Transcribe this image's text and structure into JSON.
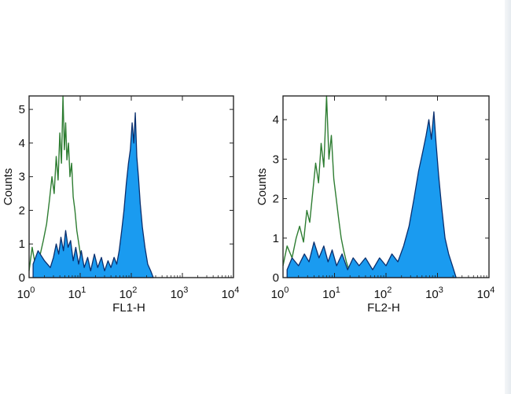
{
  "chart_data": [
    {
      "type": "area",
      "xlabel": "FL1-H",
      "ylabel": "Counts",
      "xscale": "log",
      "xlim": [
        1,
        10000
      ],
      "ylim": [
        0,
        5.4
      ],
      "xticks": [
        {
          "value": 1,
          "base": "10",
          "exp": "0"
        },
        {
          "value": 10,
          "base": "10",
          "exp": "1"
        },
        {
          "value": 100,
          "base": "10",
          "exp": "2"
        },
        {
          "value": 1000,
          "base": "10",
          "exp": "3"
        },
        {
          "value": 10000,
          "base": "10",
          "exp": "4"
        }
      ],
      "yticks": [
        0,
        1,
        2,
        3,
        4,
        5
      ],
      "grid": false,
      "series": [
        {
          "role": "sample",
          "color": "#1a9bf0",
          "outline": "#0a2f6e",
          "style": "filled",
          "points": [
            [
              1.2,
              0.4
            ],
            [
              1.5,
              0.8
            ],
            [
              2,
              0.5
            ],
            [
              2.6,
              0.3
            ],
            [
              3,
              0.6
            ],
            [
              3.4,
              1.0
            ],
            [
              3.8,
              0.7
            ],
            [
              4.2,
              1.2
            ],
            [
              4.7,
              0.8
            ],
            [
              5.2,
              1.4
            ],
            [
              5.8,
              0.9
            ],
            [
              6.5,
              1.1
            ],
            [
              7.3,
              0.5
            ],
            [
              8.2,
              0.9
            ],
            [
              9.3,
              0.4
            ],
            [
              10.5,
              0.8
            ],
            [
              12,
              0.3
            ],
            [
              14,
              0.6
            ],
            [
              16,
              0.2
            ],
            [
              19,
              0.7
            ],
            [
              22,
              0.3
            ],
            [
              26,
              0.6
            ],
            [
              30,
              0.2
            ],
            [
              35,
              0.5
            ],
            [
              40,
              0.3
            ],
            [
              46,
              0.6
            ],
            [
              52,
              0.4
            ],
            [
              58,
              0.8
            ],
            [
              65,
              1.4
            ],
            [
              72,
              2.0
            ],
            [
              80,
              2.8
            ],
            [
              88,
              3.4
            ],
            [
              96,
              3.8
            ],
            [
              104,
              4.6
            ],
            [
              112,
              4.0
            ],
            [
              120,
              4.9
            ],
            [
              128,
              3.6
            ],
            [
              138,
              3.0
            ],
            [
              150,
              2.2
            ],
            [
              165,
              1.5
            ],
            [
              185,
              0.9
            ],
            [
              210,
              0.4
            ],
            [
              240,
              0.2
            ],
            [
              270,
              0.0
            ]
          ]
        },
        {
          "role": "control",
          "color": "#2e7d32",
          "style": "line",
          "points": [
            [
              1,
              0.2
            ],
            [
              1.15,
              0.9
            ],
            [
              1.35,
              0.3
            ],
            [
              1.6,
              0.6
            ],
            [
              1.9,
              1.1
            ],
            [
              2.2,
              1.6
            ],
            [
              2.5,
              2.3
            ],
            [
              2.8,
              3.0
            ],
            [
              3.1,
              2.5
            ],
            [
              3.4,
              3.6
            ],
            [
              3.7,
              2.9
            ],
            [
              4.0,
              4.3
            ],
            [
              4.3,
              3.4
            ],
            [
              4.6,
              5.4
            ],
            [
              4.9,
              3.8
            ],
            [
              5.2,
              4.6
            ],
            [
              5.5,
              3.5
            ],
            [
              5.9,
              4.0
            ],
            [
              6.3,
              3.0
            ],
            [
              6.8,
              3.4
            ],
            [
              7.3,
              2.4
            ],
            [
              7.9,
              2.0
            ],
            [
              8.6,
              1.4
            ],
            [
              9.4,
              1.0
            ],
            [
              10.3,
              0.6
            ],
            [
              11.5,
              0.4
            ],
            [
              13,
              0.2
            ],
            [
              15,
              0.0
            ]
          ]
        }
      ]
    },
    {
      "type": "area",
      "xlabel": "FL2-H",
      "ylabel": "Counts",
      "xscale": "log",
      "xlim": [
        1,
        10000
      ],
      "ylim": [
        0,
        4.6
      ],
      "xticks": [
        {
          "value": 1,
          "base": "10",
          "exp": "0"
        },
        {
          "value": 10,
          "base": "10",
          "exp": "1"
        },
        {
          "value": 100,
          "base": "10",
          "exp": "2"
        },
        {
          "value": 1000,
          "base": "10",
          "exp": "3"
        },
        {
          "value": 10000,
          "base": "10",
          "exp": "4"
        }
      ],
      "yticks": [
        0,
        1,
        2,
        3,
        4
      ],
      "grid": false,
      "series": [
        {
          "role": "sample",
          "color": "#1a9bf0",
          "outline": "#0a2f6e",
          "style": "filled",
          "points": [
            [
              1.2,
              0.2
            ],
            [
              1.5,
              0.5
            ],
            [
              2,
              0.3
            ],
            [
              2.6,
              0.6
            ],
            [
              3.2,
              0.4
            ],
            [
              4,
              0.9
            ],
            [
              5,
              0.5
            ],
            [
              6.2,
              0.8
            ],
            [
              7.5,
              0.4
            ],
            [
              9,
              0.7
            ],
            [
              11,
              0.3
            ],
            [
              14,
              0.6
            ],
            [
              18,
              0.2
            ],
            [
              23,
              0.5
            ],
            [
              30,
              0.3
            ],
            [
              40,
              0.5
            ],
            [
              55,
              0.2
            ],
            [
              75,
              0.5
            ],
            [
              100,
              0.3
            ],
            [
              130,
              0.6
            ],
            [
              170,
              0.4
            ],
            [
              220,
              0.8
            ],
            [
              280,
              1.3
            ],
            [
              350,
              2.0
            ],
            [
              430,
              2.7
            ],
            [
              520,
              3.2
            ],
            [
              600,
              3.6
            ],
            [
              680,
              4.0
            ],
            [
              760,
              3.5
            ],
            [
              850,
              4.2
            ],
            [
              940,
              3.4
            ],
            [
              1050,
              2.6
            ],
            [
              1200,
              1.8
            ],
            [
              1400,
              1.0
            ],
            [
              1650,
              0.6
            ],
            [
              1950,
              0.3
            ],
            [
              2300,
              0.0
            ]
          ]
        },
        {
          "role": "control",
          "color": "#2e7d32",
          "style": "line",
          "points": [
            [
              1,
              0.3
            ],
            [
              1.2,
              0.8
            ],
            [
              1.5,
              0.5
            ],
            [
              1.8,
              1.0
            ],
            [
              2.1,
              1.3
            ],
            [
              2.5,
              0.9
            ],
            [
              2.9,
              1.7
            ],
            [
              3.3,
              1.4
            ],
            [
              3.8,
              2.2
            ],
            [
              4.3,
              2.9
            ],
            [
              4.9,
              2.4
            ],
            [
              5.5,
              3.4
            ],
            [
              6.2,
              2.8
            ],
            [
              7.0,
              4.6
            ],
            [
              7.8,
              3.0
            ],
            [
              8.7,
              3.6
            ],
            [
              9.7,
              2.5
            ],
            [
              10.8,
              2.0
            ],
            [
              12,
              1.5
            ],
            [
              13.5,
              1.0
            ],
            [
              15,
              0.7
            ],
            [
              17,
              0.4
            ],
            [
              19,
              0.2
            ],
            [
              22,
              0.0
            ]
          ]
        }
      ]
    }
  ]
}
